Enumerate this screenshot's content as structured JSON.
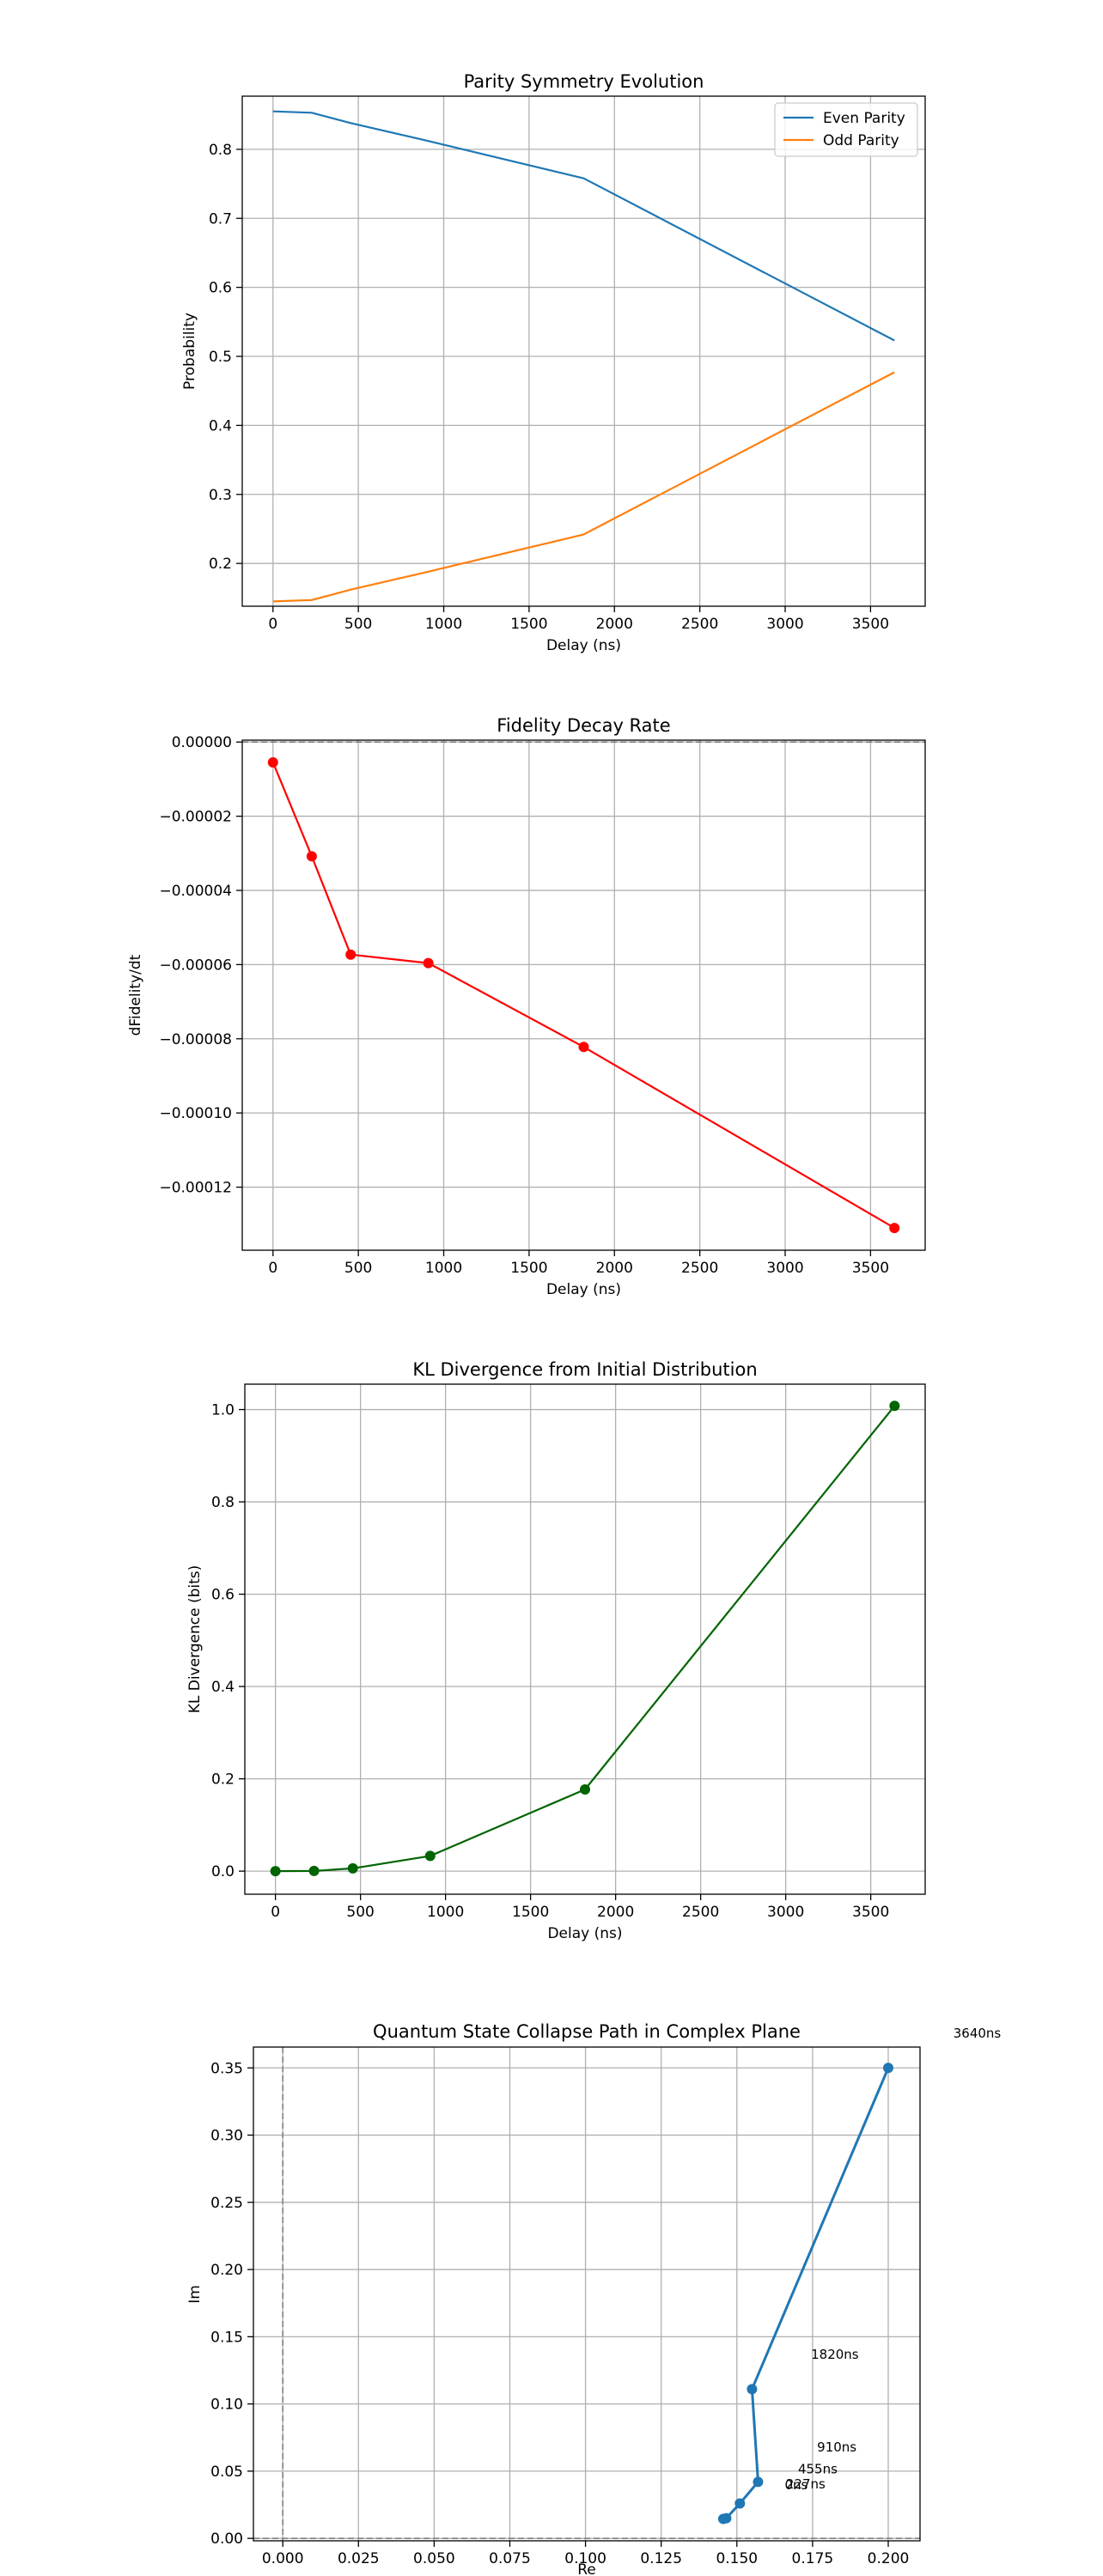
{
  "chart_data": [
    {
      "type": "line",
      "title": "Parity Symmetry Evolution",
      "xlabel": "Delay (ns)",
      "ylabel": "Probability",
      "xlim": [
        -180,
        3820
      ],
      "ylim": [
        0.138,
        0.877
      ],
      "xticks": [
        0,
        500,
        1000,
        1500,
        2000,
        2500,
        3000,
        3500
      ],
      "yticks": [
        0.2,
        0.3,
        0.4,
        0.5,
        0.6,
        0.7,
        0.8
      ],
      "tick_decimals": 1,
      "grid": true,
      "legend": "top-right",
      "x": [
        0,
        227,
        455,
        910,
        1820,
        3640
      ],
      "series": [
        {
          "name": "Even Parity",
          "color": "#1f77b4",
          "values": [
            0.855,
            0.853,
            0.838,
            0.812,
            0.758,
            0.523
          ]
        },
        {
          "name": "Odd Parity",
          "color": "#ff7f0e",
          "values": [
            0.145,
            0.147,
            0.162,
            0.188,
            0.242,
            0.477
          ]
        }
      ]
    },
    {
      "type": "line",
      "title": "Fidelity Decay Rate",
      "xlabel": "Delay (ns)",
      "ylabel": "dFidelity/dt",
      "xlim": [
        -180,
        3820
      ],
      "ylim": [
        -0.000137,
        5e-07
      ],
      "xticks": [
        0,
        500,
        1000,
        1500,
        2000,
        2500,
        3000,
        3500
      ],
      "yticks": [
        0,
        -2e-05,
        -4e-05,
        -6e-05,
        -8e-05,
        -0.0001,
        -0.00012
      ],
      "tick_decimals": 5,
      "grid": true,
      "reference_line": {
        "axis": "y",
        "value": 0,
        "color": "#808080"
      },
      "x": [
        0,
        227,
        455,
        910,
        1820,
        3640
      ],
      "series": [
        {
          "name": "",
          "color": "#ff0000",
          "marker": "circle",
          "values": [
            -5.5e-06,
            -3.08e-05,
            -5.73e-05,
            -5.96e-05,
            -8.22e-05,
            -0.000131
          ]
        }
      ]
    },
    {
      "type": "line",
      "title": "KL Divergence from Initial Distribution",
      "xlabel": "Delay (ns)",
      "ylabel": "KL Divergence (bits)",
      "xlim": [
        -180,
        3820
      ],
      "ylim": [
        -0.05,
        1.055
      ],
      "xticks": [
        0,
        500,
        1000,
        1500,
        2000,
        2500,
        3000,
        3500
      ],
      "yticks": [
        0.0,
        0.2,
        0.4,
        0.6,
        0.8,
        1.0
      ],
      "tick_decimals": 1,
      "grid": true,
      "x": [
        0,
        227,
        455,
        910,
        1820,
        3640
      ],
      "series": [
        {
          "name": "",
          "color": "#006400",
          "marker": "circle",
          "values": [
            0.0,
            0.0005,
            0.006,
            0.033,
            0.177,
            1.008
          ]
        }
      ]
    },
    {
      "type": "scatter",
      "title": "Quantum State Collapse Path in Complex Plane",
      "xlabel": "Re",
      "ylabel": "Im",
      "xlim": [
        -0.0097,
        0.2105
      ],
      "ylim": [
        -0.0018,
        0.3655
      ],
      "xticks": [
        0.0,
        0.025,
        0.05,
        0.075,
        0.1,
        0.125,
        0.15,
        0.175,
        0.2
      ],
      "yticks": [
        0.0,
        0.05,
        0.1,
        0.15,
        0.2,
        0.25,
        0.3,
        0.35
      ],
      "tick_decimals_x": 3,
      "tick_decimals_y": 2,
      "grid": true,
      "reference_lines": [
        {
          "axis": "x",
          "value": 0,
          "color": "#808080"
        },
        {
          "axis": "y",
          "value": 0,
          "color": "#808080"
        }
      ],
      "series": [
        {
          "name": "",
          "color": "#1f77b4",
          "marker": "circle",
          "x": [
            0.1455,
            0.1465,
            0.151,
            0.157,
            0.155,
            0.2
          ],
          "y": [
            0.0145,
            0.015,
            0.026,
            0.042,
            0.111,
            0.35
          ]
        }
      ],
      "annotations": [
        {
          "text": "0ns",
          "x": 0.1658,
          "y": 0.0365
        },
        {
          "text": "227ns",
          "x": 0.1662,
          "y": 0.0373
        },
        {
          "text": "455ns",
          "x": 0.1702,
          "y": 0.0485
        },
        {
          "text": "910ns",
          "x": 0.1765,
          "y": 0.0645
        },
        {
          "text": "1820ns",
          "x": 0.1745,
          "y": 0.1335
        },
        {
          "text": "3640ns",
          "x": 0.2215,
          "y": 0.3725
        }
      ]
    }
  ]
}
